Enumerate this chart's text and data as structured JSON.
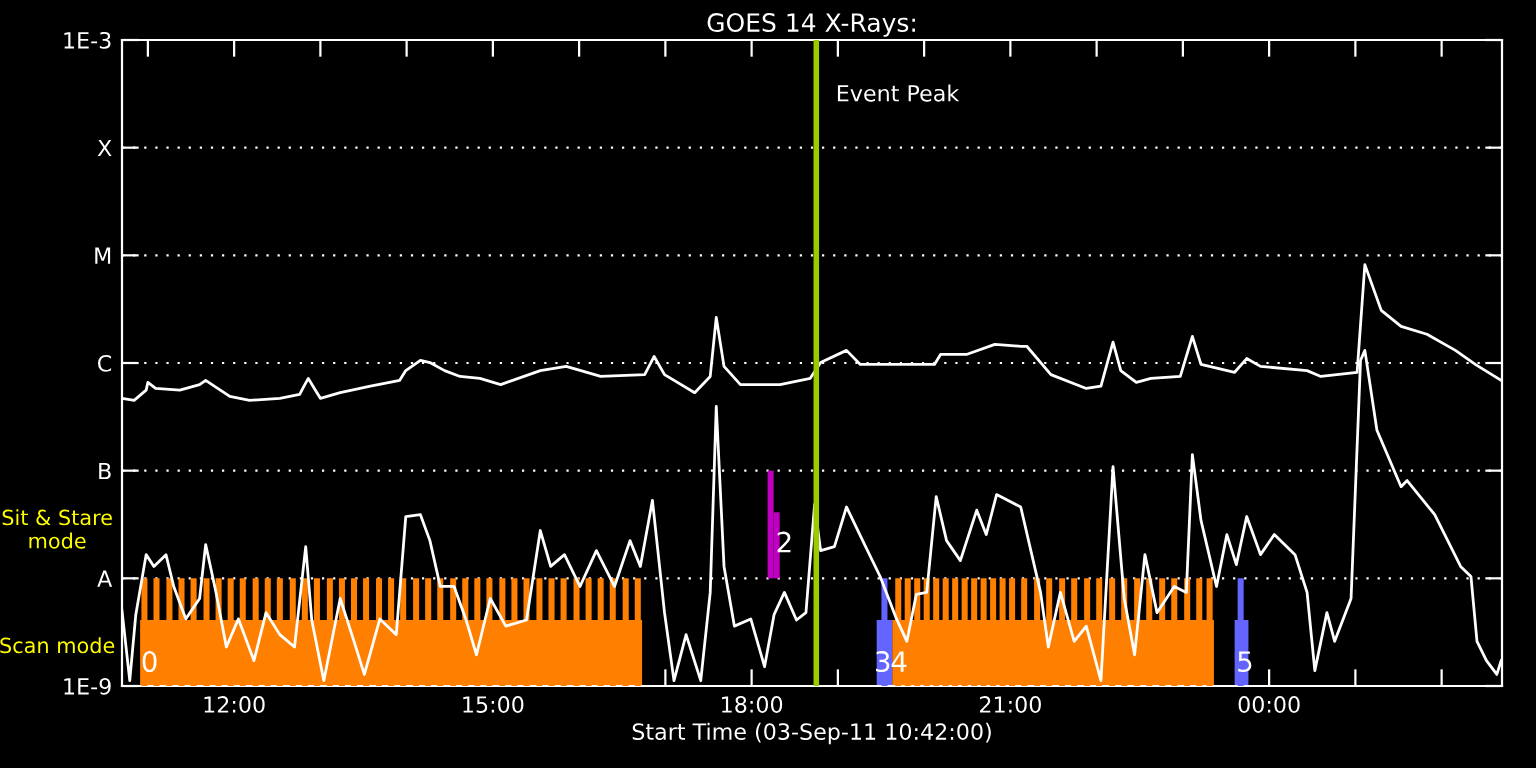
{
  "chart_data": {
    "type": "line",
    "title": "GOES 14 X-Rays:",
    "xlabel": "Start Time (03-Sep-11 10:42:00)",
    "log": "y",
    "grid": "y",
    "xlim": [
      10.7,
      26.7
    ],
    "xticks": [
      {
        "value": 11,
        "label": null
      },
      {
        "value": 12,
        "label": "12:00"
      },
      {
        "value": 13,
        "label": null
      },
      {
        "value": 14,
        "label": null
      },
      {
        "value": 15,
        "label": "15:00"
      },
      {
        "value": 16,
        "label": null
      },
      {
        "value": 17,
        "label": null
      },
      {
        "value": 18,
        "label": "18:00"
      },
      {
        "value": 19,
        "label": null
      },
      {
        "value": 20,
        "label": null
      },
      {
        "value": 21,
        "label": "21:00"
      },
      {
        "value": 22,
        "label": null
      },
      {
        "value": 23,
        "label": null
      },
      {
        "value": 24,
        "label": "00:00"
      },
      {
        "value": 25,
        "label": null
      },
      {
        "value": 26,
        "label": null
      }
    ],
    "ylim": [
      1e-09,
      0.001
    ],
    "yticks": [
      {
        "value": 1e-09,
        "label": "1E-9"
      },
      {
        "value": 1e-08,
        "label": "A"
      },
      {
        "value": 1e-07,
        "label": "B"
      },
      {
        "value": 1e-06,
        "label": "C"
      },
      {
        "value": 1e-05,
        "label": "M"
      },
      {
        "value": 0.0001,
        "label": "X"
      },
      {
        "value": 0.001,
        "label": "1E-3"
      }
    ],
    "series": [
      {
        "type": "area",
        "color": "#ff8000",
        "x": [
          10.91,
          16.73
        ],
        "values": [
          4.1e-09,
          4.1e-09
        ]
      },
      {
        "type": "area",
        "color": "#ff8000",
        "x": [
          19.63,
          23.36
        ],
        "values": [
          4.1e-09,
          4.1e-09
        ]
      },
      {
        "type": "bar",
        "color": "#ff8000",
        "x": [
          10.96,
          11.1,
          11.25,
          11.39,
          11.53,
          11.68,
          11.82,
          11.96,
          12.1,
          12.25,
          12.39,
          12.53,
          12.68,
          12.82,
          12.96,
          13.11,
          13.25,
          13.39,
          13.53,
          13.68,
          13.82,
          13.96,
          14.11,
          14.25,
          14.39,
          14.54,
          14.68,
          14.82,
          14.96,
          15.11,
          15.25,
          15.39,
          15.54,
          15.68,
          15.82,
          15.97,
          16.11,
          16.25,
          16.39,
          16.54,
          16.68,
          19.7,
          19.81,
          19.92,
          20.03,
          20.14,
          20.25,
          20.36,
          20.47,
          20.58,
          20.69,
          20.8,
          20.91,
          21.02,
          21.16,
          21.31,
          21.45,
          21.6,
          21.74,
          21.89,
          22.03,
          22.18,
          22.32,
          22.47,
          22.61,
          22.76,
          22.9,
          23.05,
          23.19,
          23.31
        ],
        "values": [
          1e-08,
          1e-08,
          1e-08,
          1e-08,
          1e-08,
          1e-08,
          1e-08,
          1e-08,
          1e-08,
          1e-08,
          1e-08,
          1e-08,
          1e-08,
          1e-08,
          1e-08,
          1e-08,
          1e-08,
          1e-08,
          1e-08,
          1e-08,
          1e-08,
          1e-08,
          1e-08,
          1e-08,
          1e-08,
          1e-08,
          1e-08,
          1e-08,
          1e-08,
          1e-08,
          1e-08,
          1e-08,
          1e-08,
          1e-08,
          1e-08,
          1e-08,
          1e-08,
          1e-08,
          1e-08,
          1e-08,
          1e-08,
          1e-08,
          1e-08,
          1e-08,
          1e-08,
          1e-08,
          1e-08,
          1e-08,
          1e-08,
          1e-08,
          1e-08,
          1e-08,
          1e-08,
          1e-08,
          1e-08,
          1e-08,
          1e-08,
          1e-08,
          1e-08,
          1e-08,
          1e-08,
          1e-08,
          1e-08,
          1e-08,
          1e-08,
          1e-08,
          1e-08,
          1e-08,
          1e-08,
          1e-08
        ]
      },
      {
        "type": "area",
        "color": "#6464ff",
        "x": [
          19.45,
          19.63
        ],
        "values": [
          4.1e-09,
          4.1e-09
        ]
      },
      {
        "type": "area",
        "color": "#6464ff",
        "x": [
          23.6,
          23.76
        ],
        "values": [
          4.1e-09,
          4.1e-09
        ]
      },
      {
        "type": "bar",
        "color": "#6464ff",
        "x": [
          19.54,
          23.67
        ],
        "values": [
          1e-08,
          1e-08
        ]
      },
      {
        "type": "bar",
        "color": "#c000c0",
        "x": [
          18.22,
          18.29
        ],
        "base": [
          1e-08,
          1e-08
        ],
        "values": [
          9e-08,
          3.1e-08
        ]
      },
      {
        "color": "#ffffff",
        "x": [
          10.7,
          10.84,
          10.98,
          11.0,
          11.09,
          11.37,
          11.6,
          11.67,
          11.77,
          11.95,
          12.18,
          12.53,
          12.76,
          12.81,
          12.86,
          12.93,
          13.0,
          13.23,
          13.58,
          13.92,
          13.99,
          14.16,
          14.27,
          14.44,
          14.62,
          14.85,
          15.09,
          15.55,
          15.85,
          16.25,
          16.76,
          16.87,
          16.99,
          17.34,
          17.52,
          17.59,
          17.68,
          17.87,
          18.33,
          18.68,
          18.8,
          19.1,
          19.26,
          19.73,
          20.12,
          20.19,
          20.49,
          20.82,
          21.12,
          21.19,
          21.47,
          21.88,
          22.05,
          22.19,
          22.28,
          22.46,
          22.63,
          22.97,
          23.11,
          23.21,
          23.6,
          23.74,
          23.9,
          24.44,
          24.6,
          25.02,
          25.11,
          25.3,
          25.53,
          25.83,
          26.16,
          26.39,
          26.69
        ],
        "values": [
          4.7e-07,
          4.5e-07,
          5.6e-07,
          6.6e-07,
          5.8e-07,
          5.6e-07,
          6.3e-07,
          6.9e-07,
          6.1e-07,
          4.9e-07,
          4.5e-07,
          4.7e-07,
          5.1e-07,
          6.1e-07,
          7.2e-07,
          5.8e-07,
          4.7e-07,
          5.3e-07,
          6.1e-07,
          6.9e-07,
          8.5e-07,
          1.06e-06,
          1.01e-06,
          8.5e-07,
          7.5e-07,
          7.2e-07,
          6.3e-07,
          8.5e-07,
          9.3e-07,
          7.5e-07,
          7.8e-07,
          1.15e-06,
          7.8e-07,
          5.3e-07,
          7.5e-07,
          2.65e-06,
          9.3e-07,
          6.3e-07,
          6.3e-07,
          7.2e-07,
          1.01e-06,
          1.31e-06,
          9.7e-07,
          9.7e-07,
          9.7e-07,
          1.2e-06,
          1.2e-06,
          1.49e-06,
          1.43e-06,
          1.43e-06,
          7.8e-07,
          5.8e-07,
          6.1e-07,
          1.56e-06,
          8.5e-07,
          6.6e-07,
          7.2e-07,
          7.5e-07,
          1.77e-06,
          9.7e-07,
          8.2e-07,
          1.1e-06,
          9.3e-07,
          8.5e-07,
          7.5e-07,
          8.2e-07,
          8.2e-06,
          3.08e-06,
          2.19e-06,
          1.85e-06,
          1.31e-06,
          9.7e-07,
          6.9e-07
        ]
      },
      {
        "color": "#ffffff",
        "x": [
          10.7,
          10.79,
          10.86,
          10.98,
          11.07,
          11.21,
          11.3,
          11.44,
          11.6,
          11.67,
          11.79,
          11.91,
          12.05,
          12.23,
          12.37,
          12.53,
          12.7,
          12.83,
          12.9,
          13.04,
          13.23,
          13.39,
          13.51,
          13.69,
          13.88,
          13.99,
          14.16,
          14.27,
          14.39,
          14.55,
          14.69,
          14.81,
          14.97,
          15.15,
          15.39,
          15.55,
          15.67,
          15.83,
          16.01,
          16.2,
          16.41,
          16.59,
          16.71,
          16.85,
          16.99,
          17.1,
          17.24,
          17.41,
          17.52,
          17.59,
          17.68,
          17.8,
          17.99,
          18.15,
          18.26,
          18.38,
          18.52,
          18.63,
          18.73,
          18.8,
          18.96,
          19.1,
          19.31,
          19.49,
          19.68,
          19.8,
          19.91,
          20.03,
          20.14,
          20.26,
          20.42,
          20.61,
          20.72,
          20.84,
          21.12,
          21.35,
          21.44,
          21.58,
          21.74,
          21.88,
          22.05,
          22.19,
          22.32,
          22.44,
          22.56,
          22.7,
          22.9,
          23.04,
          23.11,
          23.21,
          23.39,
          23.51,
          23.62,
          23.74,
          23.9,
          24.06,
          24.3,
          24.44,
          24.53,
          24.67,
          24.76,
          24.95,
          25.06,
          25.11,
          25.25,
          25.53,
          25.6,
          25.92,
          26.22,
          26.34,
          26.41,
          26.52,
          26.64,
          26.69
        ],
        "values": [
          5e-09,
          1.12e-09,
          4.6e-09,
          1.66e-08,
          1.29e-08,
          1.66e-08,
          8.4e-09,
          4.2e-09,
          6.5e-09,
          2.06e-08,
          7.4e-09,
          2.3e-09,
          4.2e-09,
          1.72e-09,
          4.8e-09,
          3e-09,
          2.3e-09,
          1.97e-08,
          4.1e-09,
          1.12e-09,
          6.5e-09,
          2.6e-09,
          1.28e-09,
          4.2e-09,
          3e-09,
          3.75e-08,
          3.9e-08,
          2.24e-08,
          8.4e-09,
          8.4e-09,
          4.1e-09,
          1.95e-09,
          6.5e-09,
          3.6e-09,
          4.1e-09,
          2.78e-08,
          1.29e-08,
          1.66e-08,
          8.4e-09,
          1.81e-08,
          8.4e-09,
          2.24e-08,
          1.29e-08,
          5.3e-08,
          4.8e-09,
          1.12e-09,
          3e-09,
          1.12e-09,
          7.4e-09,
          3.95e-07,
          1.29e-08,
          3.6e-09,
          4.2e-09,
          1.51e-09,
          4.6e-09,
          7.4e-09,
          4.1e-09,
          4.8e-09,
          4.85e-08,
          1.81e-08,
          1.97e-08,
          4.6e-08,
          2.06e-08,
          1.04e-08,
          4.2e-09,
          2.6e-09,
          7.1e-09,
          7.4e-09,
          5.75e-08,
          2.24e-08,
          1.46e-08,
          4.3e-08,
          2.55e-08,
          6e-08,
          4.6e-08,
          7.4e-09,
          2.3e-09,
          7.4e-09,
          2.6e-09,
          3.6e-09,
          1.12e-09,
          1.09e-07,
          6.5e-09,
          1.95e-09,
          1.66e-08,
          4.8e-09,
          8.4e-09,
          7.4e-09,
          1.41e-07,
          3.45e-08,
          8.4e-09,
          2.55e-08,
          1.34e-08,
          3.75e-08,
          1.66e-08,
          2.55e-08,
          1.66e-08,
          7.4e-09,
          1.39e-09,
          4.8e-09,
          2.6e-09,
          6.5e-09,
          1.06e-06,
          1.31e-06,
          2.37e-07,
          7.1e-08,
          8.1e-08,
          3.9e-08,
          1.29e-08,
          1.04e-08,
          2.6e-09,
          1.72e-09,
          1.28e-09,
          1.72e-09
        ]
      }
    ],
    "ref_lines": [
      {
        "axis": "x",
        "value": 18.75,
        "label": "Event Peak",
        "color": "#99cc00"
      }
    ],
    "annotations": [
      "Sit & Stare\nmode",
      "Scan mode",
      {
        "text": "0",
        "x": 11.02,
        "y": 1.6e-09
      },
      {
        "text": "2",
        "x": 18.38,
        "y": 2.06e-08
      },
      {
        "text": "3",
        "x": 19.52,
        "y": 1.6e-09
      },
      {
        "text": "4",
        "x": 19.71,
        "y": 1.6e-09
      },
      {
        "text": "5",
        "x": 23.72,
        "y": 1.6e-09
      }
    ]
  }
}
